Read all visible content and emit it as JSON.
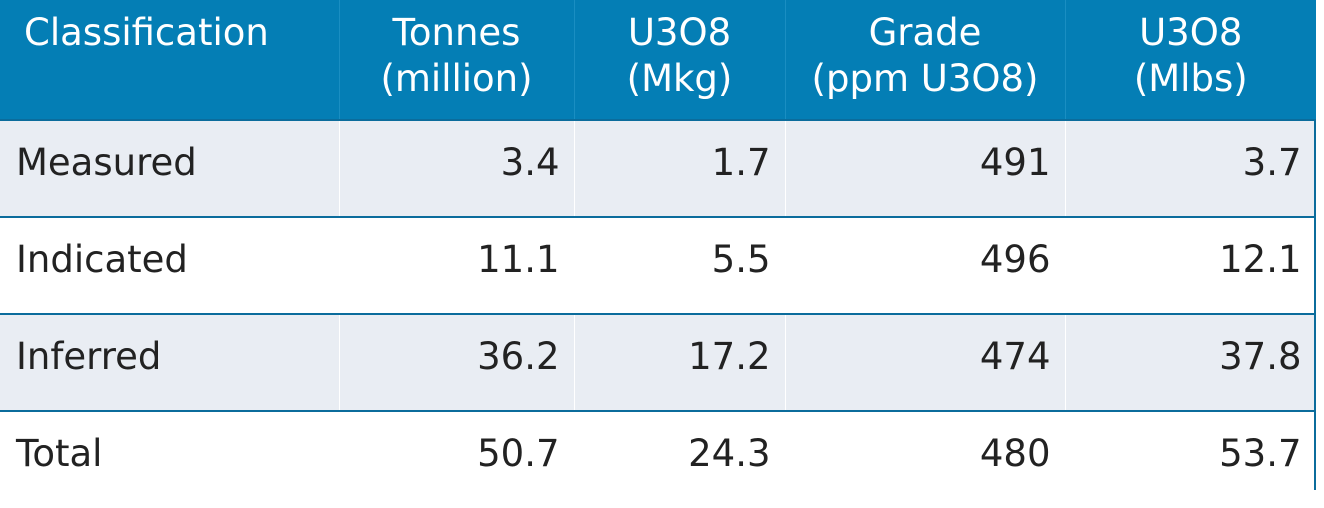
{
  "table": {
    "headers": [
      {
        "line1": "Classification",
        "line2": ""
      },
      {
        "line1": "Tonnes",
        "line2": "(million)"
      },
      {
        "line1": "U3O8",
        "line2": "(Mkg)"
      },
      {
        "line1": "Grade",
        "line2": "(ppm U3O8)"
      },
      {
        "line1": "U3O8",
        "line2": "(Mlbs)"
      }
    ],
    "rows": [
      {
        "classification": "Measured",
        "tonnes": "3.4",
        "mkg": "1.7",
        "grade": "491",
        "mlbs": "3.7"
      },
      {
        "classification": "Indicated",
        "tonnes": "11.1",
        "mkg": "5.5",
        "grade": "496",
        "mlbs": "12.1"
      },
      {
        "classification": "Inferred",
        "tonnes": "36.2",
        "mkg": "17.2",
        "grade": "474",
        "mlbs": "37.8"
      },
      {
        "classification": "Total",
        "tonnes": "50.7",
        "mkg": "24.3",
        "grade": "480",
        "mlbs": "53.7"
      }
    ]
  },
  "colors": {
    "header_bg": "#047eb5",
    "header_text": "#ffffff",
    "shaded_row": "#e9edf3",
    "row_border": "#0b6c9c"
  }
}
